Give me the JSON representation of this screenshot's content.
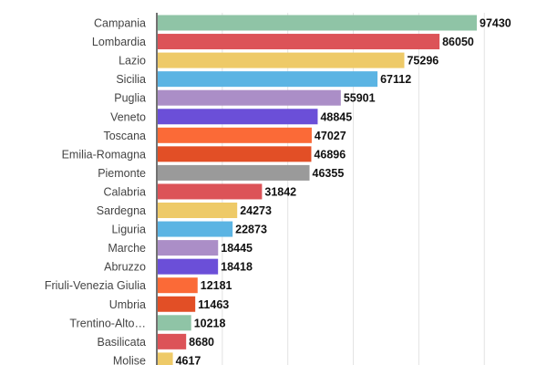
{
  "chart_data": {
    "type": "bar",
    "orientation": "horizontal",
    "title": "",
    "xlabel": "",
    "ylabel": "",
    "xlim": [
      0,
      120000
    ],
    "grid": true,
    "grid_step": 20000,
    "categories": [
      "Campania",
      "Lombardia",
      "Lazio",
      "Sicilia",
      "Puglia",
      "Veneto",
      "Toscana",
      "Emilia-Romagna",
      "Piemonte",
      "Calabria",
      "Sardegna",
      "Liguria",
      "Marche",
      "Abruzzo",
      "Friuli-Venezia Giulia",
      "Umbria",
      "Trentino-Alto…",
      "Basilicata",
      "Molise"
    ],
    "values": [
      97430,
      86050,
      75296,
      67112,
      55901,
      48845,
      47027,
      46896,
      46355,
      31842,
      24273,
      22873,
      18445,
      18418,
      12181,
      11463,
      10218,
      8680,
      4617
    ],
    "colors": [
      "#8fc4a6",
      "#dc5358",
      "#eeca68",
      "#5bb4e3",
      "#ab8ec7",
      "#6b4fd8",
      "#fb6a37",
      "#e24f26",
      "#9a9a9a",
      "#dc5358",
      "#eeca68",
      "#5bb4e3",
      "#ab8ec7",
      "#6b4fd8",
      "#fb6a37",
      "#e24f26",
      "#8fc4a6",
      "#dc5358",
      "#eeca68"
    ]
  }
}
